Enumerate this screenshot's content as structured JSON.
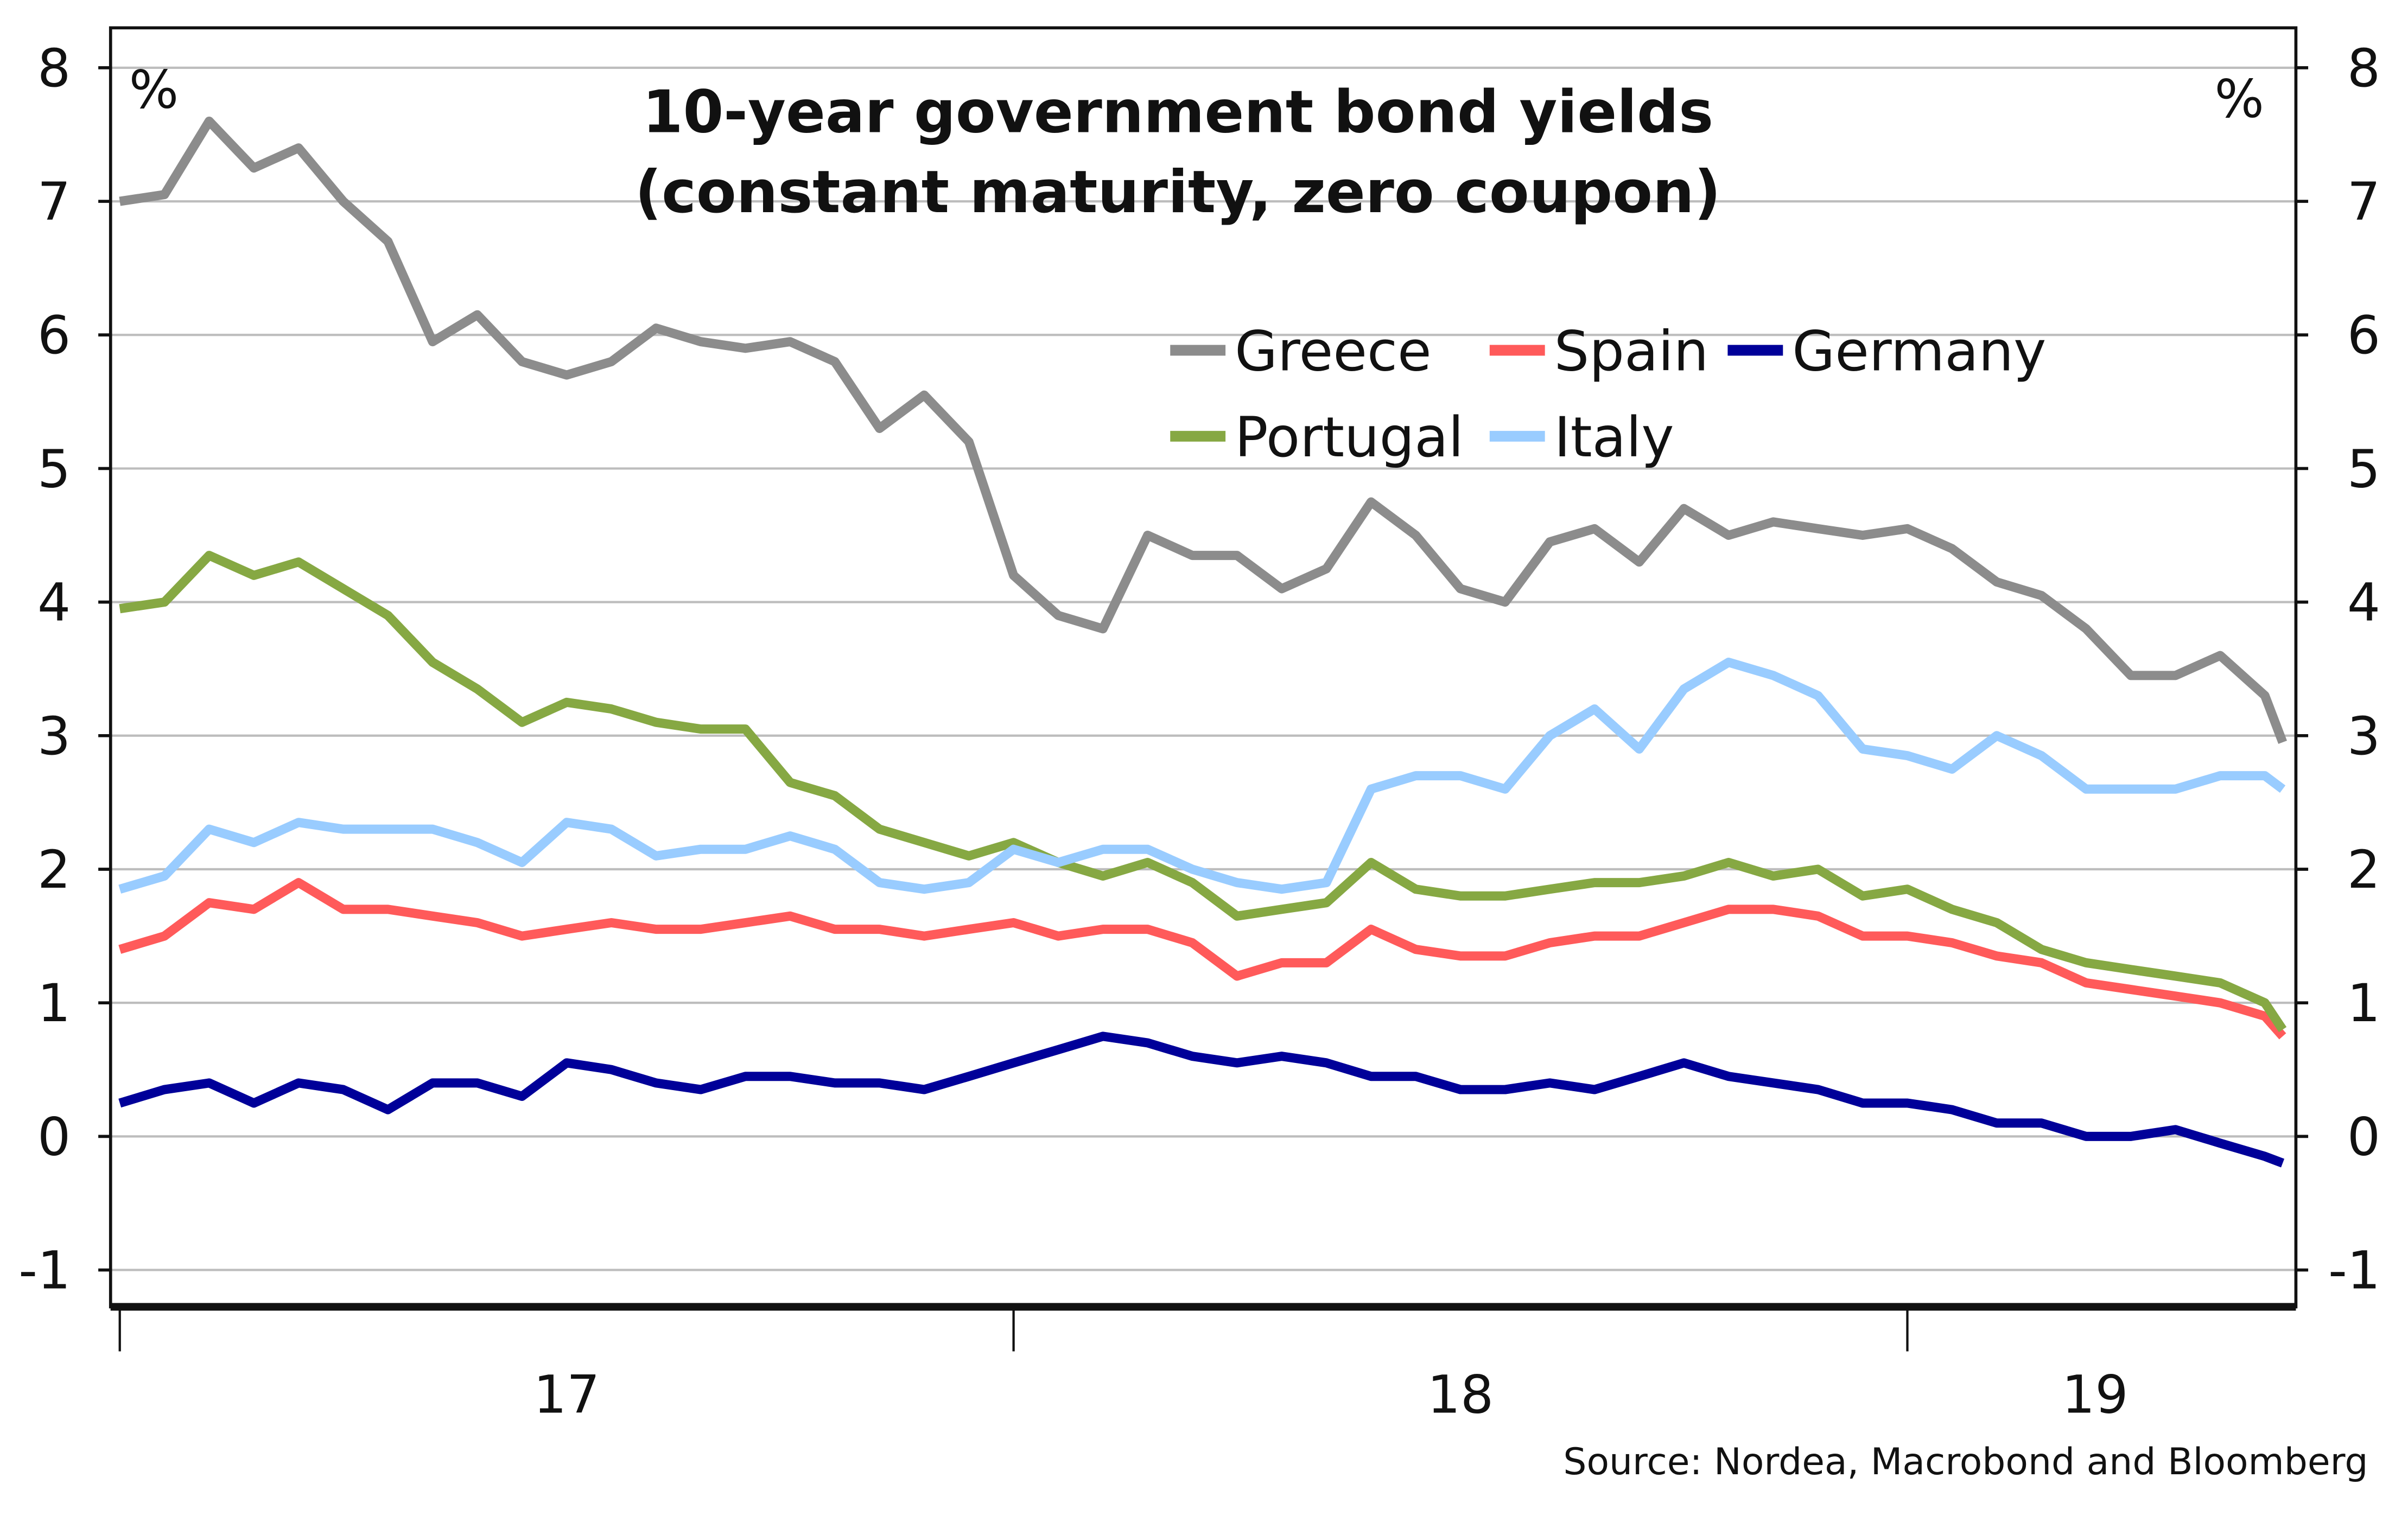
{
  "chart_data": {
    "type": "line",
    "title": [
      "10-year government bond yields",
      "(constant maturity, zero coupon)"
    ],
    "ylabel_left": "%",
    "ylabel_right": "%",
    "source": "Source: Nordea, Macrobond and Bloomberg",
    "ylim": [
      -1.15,
      8.35
    ],
    "yticks": [
      -1,
      0,
      1,
      2,
      3,
      4,
      5,
      6,
      7,
      8
    ],
    "xlim": [
      2017.0,
      2019.44
    ],
    "xtick_boundaries": [
      2017,
      2018,
      2019
    ],
    "xtick_labels": [
      {
        "label": "17",
        "at": 2017.5
      },
      {
        "label": "18",
        "at": 2018.5
      },
      {
        "label": "19",
        "at": 2019.21
      }
    ],
    "grid": true,
    "legend_placement": "top-center-right",
    "x": [
      2017.0,
      2017.05,
      2017.1,
      2017.15,
      2017.2,
      2017.25,
      2017.3,
      2017.35,
      2017.4,
      2017.45,
      2017.5,
      2017.55,
      2017.6,
      2017.65,
      2017.7,
      2017.75,
      2017.8,
      2017.85,
      2017.9,
      2017.95,
      2018.0,
      2018.05,
      2018.1,
      2018.15,
      2018.2,
      2018.25,
      2018.3,
      2018.35,
      2018.4,
      2018.45,
      2018.5,
      2018.55,
      2018.6,
      2018.65,
      2018.7,
      2018.75,
      2018.8,
      2018.85,
      2018.9,
      2018.95,
      2019.0,
      2019.05,
      2019.1,
      2019.15,
      2019.2,
      2019.25,
      2019.3,
      2019.35,
      2019.4,
      2019.42
    ],
    "series": [
      {
        "name": "Greece",
        "color": "#8c8c8c",
        "values": [
          7.0,
          7.05,
          7.6,
          7.25,
          7.4,
          7.0,
          6.7,
          5.95,
          6.15,
          5.8,
          5.7,
          5.8,
          6.05,
          5.95,
          5.9,
          5.95,
          5.8,
          5.3,
          5.55,
          5.2,
          4.2,
          3.9,
          3.8,
          4.5,
          4.35,
          4.35,
          4.1,
          4.25,
          4.75,
          4.5,
          4.1,
          4.0,
          4.45,
          4.55,
          4.3,
          4.7,
          4.5,
          4.6,
          4.55,
          4.5,
          4.55,
          4.4,
          4.15,
          4.05,
          3.8,
          3.45,
          3.45,
          3.6,
          3.3,
          2.95
        ]
      },
      {
        "name": "Spain",
        "color": "#ff5a5a",
        "values": [
          1.4,
          1.5,
          1.75,
          1.7,
          1.9,
          1.7,
          1.7,
          1.65,
          1.6,
          1.5,
          1.55,
          1.6,
          1.55,
          1.55,
          1.6,
          1.65,
          1.55,
          1.55,
          1.5,
          1.55,
          1.6,
          1.5,
          1.55,
          1.55,
          1.45,
          1.2,
          1.3,
          1.3,
          1.55,
          1.4,
          1.35,
          1.35,
          1.45,
          1.5,
          1.5,
          1.6,
          1.7,
          1.7,
          1.65,
          1.5,
          1.5,
          1.45,
          1.35,
          1.3,
          1.15,
          1.1,
          1.05,
          1.0,
          0.9,
          0.75
        ]
      },
      {
        "name": "Germany",
        "color": "#000099",
        "values": [
          0.25,
          0.35,
          0.4,
          0.25,
          0.4,
          0.35,
          0.2,
          0.4,
          0.4,
          0.3,
          0.55,
          0.5,
          0.4,
          0.35,
          0.45,
          0.45,
          0.4,
          0.4,
          0.35,
          0.45,
          0.55,
          0.65,
          0.75,
          0.7,
          0.6,
          0.55,
          0.6,
          0.55,
          0.45,
          0.45,
          0.35,
          0.35,
          0.4,
          0.35,
          0.45,
          0.55,
          0.45,
          0.4,
          0.35,
          0.25,
          0.25,
          0.2,
          0.1,
          0.1,
          0.0,
          0.0,
          0.05,
          -0.05,
          -0.15,
          -0.2
        ]
      },
      {
        "name": "Portugal",
        "color": "#86a843",
        "values": [
          3.95,
          4.0,
          4.35,
          4.2,
          4.3,
          4.1,
          3.9,
          3.55,
          3.35,
          3.1,
          3.25,
          3.2,
          3.1,
          3.05,
          3.05,
          2.65,
          2.55,
          2.3,
          2.2,
          2.1,
          2.2,
          2.05,
          1.95,
          2.05,
          1.9,
          1.65,
          1.7,
          1.75,
          2.05,
          1.85,
          1.8,
          1.8,
          1.85,
          1.9,
          1.9,
          1.95,
          2.05,
          1.95,
          2.0,
          1.8,
          1.85,
          1.7,
          1.6,
          1.4,
          1.3,
          1.25,
          1.2,
          1.15,
          1.0,
          0.8
        ]
      },
      {
        "name": "Italy",
        "color": "#99ccff",
        "values": [
          1.85,
          1.95,
          2.3,
          2.2,
          2.35,
          2.3,
          2.3,
          2.3,
          2.2,
          2.05,
          2.35,
          2.3,
          2.1,
          2.15,
          2.15,
          2.25,
          2.15,
          1.9,
          1.85,
          1.9,
          2.15,
          2.05,
          2.15,
          2.15,
          2.0,
          1.9,
          1.85,
          1.9,
          2.6,
          2.7,
          2.7,
          2.6,
          3.0,
          3.2,
          2.9,
          3.35,
          3.55,
          3.45,
          3.3,
          2.9,
          2.85,
          2.75,
          3.0,
          2.85,
          2.6,
          2.6,
          2.6,
          2.7,
          2.7,
          2.6
        ]
      }
    ]
  }
}
